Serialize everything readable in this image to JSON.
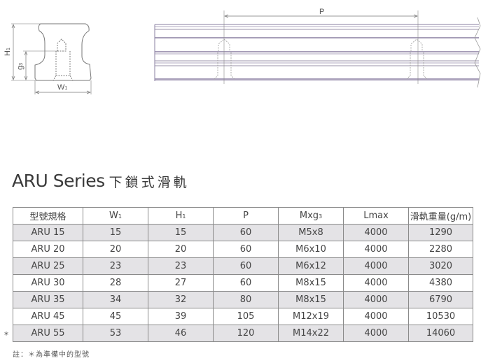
{
  "drawing": {
    "labels": {
      "h1": "H",
      "h1_sub": "1",
      "g3": "g",
      "g3_sub": "3",
      "w1": "W",
      "w1_sub": "1",
      "p": "P"
    }
  },
  "title": {
    "series": "ARU Series",
    "chinese": "下鎖式滑軌"
  },
  "table": {
    "headers": [
      {
        "main": "型號規格",
        "sub": ""
      },
      {
        "main": "W",
        "sub": "1"
      },
      {
        "main": "H",
        "sub": "1"
      },
      {
        "main": "P",
        "sub": ""
      },
      {
        "main": "Mxg",
        "sub": "3"
      },
      {
        "main": "Lmax",
        "sub": ""
      },
      {
        "main": "滑軌重量(g/m)",
        "sub": ""
      }
    ],
    "rows": [
      [
        "ARU 15",
        "15",
        "15",
        "60",
        "M5x8",
        "4000",
        "1290"
      ],
      [
        "ARU 20",
        "20",
        "20",
        "60",
        "M6x10",
        "4000",
        "2280"
      ],
      [
        "ARU 25",
        "23",
        "23",
        "60",
        "M6x12",
        "4000",
        "3020"
      ],
      [
        "ARU 30",
        "28",
        "27",
        "60",
        "M8x15",
        "4000",
        "4380"
      ],
      [
        "ARU 35",
        "34",
        "32",
        "80",
        "M8x15",
        "4000",
        "6790"
      ],
      [
        "ARU 45",
        "45",
        "39",
        "105",
        "M12x19",
        "4000",
        "10530"
      ],
      [
        "ARU 55",
        "53",
        "46",
        "120",
        "M14x22",
        "4000",
        "14060"
      ]
    ],
    "marked_row_symbol": "*"
  },
  "note": "註：＊為準備中的型號"
}
